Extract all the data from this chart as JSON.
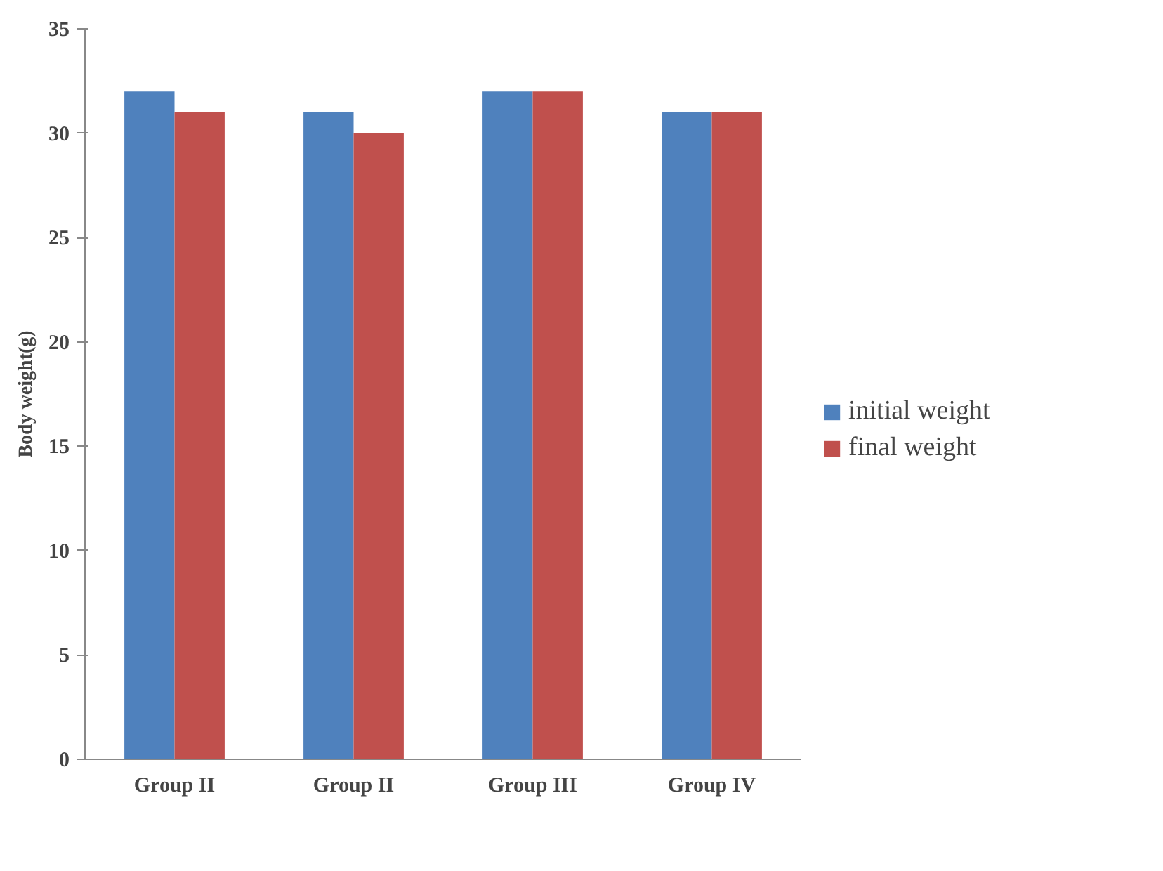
{
  "chart_data": {
    "type": "bar",
    "ylabel": "Body weight(g)",
    "categories": [
      "Group II",
      "Group II",
      "Group III",
      "Group IV"
    ],
    "series": [
      {
        "name": "initial weight",
        "color": "#4f81bd",
        "values": [
          32,
          31,
          32,
          31
        ]
      },
      {
        "name": "final weight",
        "color": "#c0504d",
        "values": [
          31,
          30,
          32,
          31
        ]
      }
    ],
    "ylim": [
      0,
      35
    ],
    "yticks": [
      0,
      5,
      10,
      15,
      20,
      25,
      30,
      35
    ],
    "grid": false,
    "legend": "right"
  }
}
